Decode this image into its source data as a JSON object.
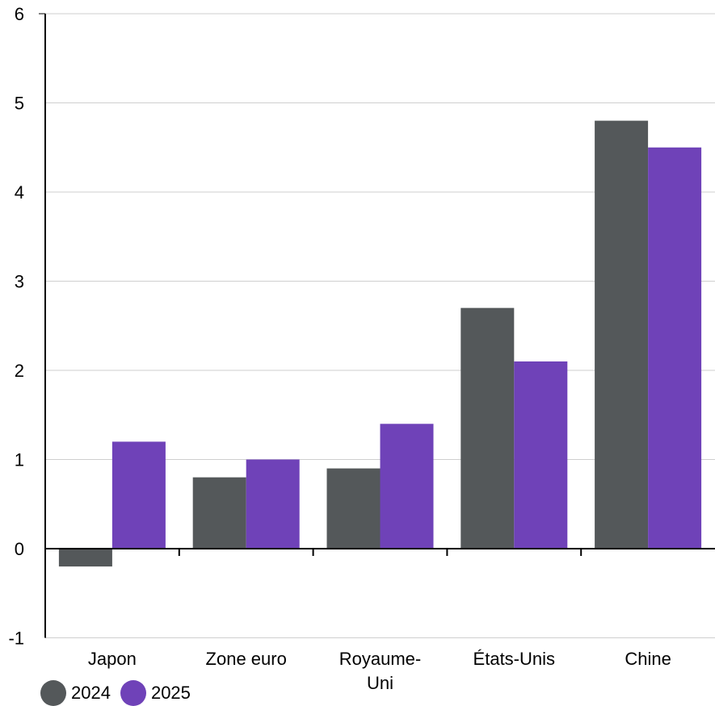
{
  "chart_data": {
    "type": "bar",
    "categories": [
      "Japon",
      "Zone euro",
      "Royaume-\nUni",
      "États-Unis",
      "Chine"
    ],
    "series": [
      {
        "name": "2024",
        "values": [
          -0.2,
          0.8,
          0.9,
          2.7,
          4.8
        ],
        "color": "#54585a"
      },
      {
        "name": "2025",
        "values": [
          1.2,
          1.0,
          1.4,
          2.1,
          4.5
        ],
        "color": "#6f42b8"
      }
    ],
    "yticks": [
      -1,
      0,
      1,
      2,
      3,
      4,
      5,
      6
    ],
    "ylim": [
      -1,
      6
    ],
    "grid": true,
    "legend_position": "bottom-left"
  }
}
